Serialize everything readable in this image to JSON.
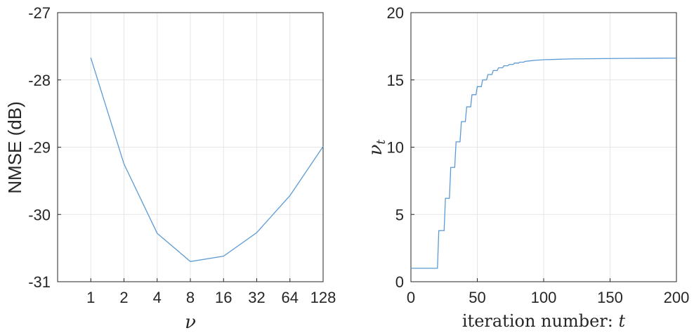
{
  "chart_data": [
    {
      "type": "line",
      "title": "",
      "xlabel": "ν",
      "ylabel": "NMSE (dB)",
      "x_ticks": [
        "1",
        "2",
        "4",
        "8",
        "16",
        "32",
        "64",
        "128"
      ],
      "y_ticks": [
        "-27",
        "-28",
        "-29",
        "-30",
        "-31"
      ],
      "ylim": [
        -31,
        -27
      ],
      "grid": true,
      "series": [
        {
          "x": [
            1,
            2,
            4,
            8,
            16,
            32,
            64,
            128
          ],
          "y": [
            -27.67,
            -29.25,
            -30.28,
            -30.7,
            -30.62,
            -30.27,
            -29.72,
            -28.99
          ]
        }
      ]
    },
    {
      "type": "line",
      "title": "",
      "xlabel": "iteration number: ",
      "xlabel_var": "t",
      "ylabel": "ν",
      "ylabel_sub": "t",
      "xlim": [
        0,
        200
      ],
      "ylim": [
        0,
        20
      ],
      "x_ticks": [
        "0",
        "50",
        "100",
        "150",
        "200"
      ],
      "y_ticks": [
        "0",
        "5",
        "10",
        "15",
        "20"
      ],
      "grid": true,
      "series": [
        {
          "x": [
            0,
            20,
            21,
            25,
            26,
            29,
            30,
            33,
            34,
            37,
            38,
            41,
            42,
            45,
            46,
            49,
            50,
            53,
            54,
            57,
            58,
            61,
            62,
            65,
            66,
            69,
            70,
            73,
            74,
            77,
            78,
            81,
            82,
            85,
            86,
            90,
            95,
            100,
            110,
            120,
            140,
            160,
            180,
            200
          ],
          "y": [
            1,
            1,
            3.8,
            3.8,
            6.2,
            6.2,
            8.5,
            8.5,
            10.4,
            10.4,
            11.9,
            11.9,
            13.0,
            13.0,
            13.9,
            13.9,
            14.5,
            14.5,
            15.0,
            15.0,
            15.4,
            15.4,
            15.7,
            15.7,
            15.9,
            15.9,
            16.05,
            16.05,
            16.15,
            16.15,
            16.25,
            16.25,
            16.32,
            16.32,
            16.38,
            16.42,
            16.47,
            16.5,
            16.53,
            16.56,
            16.58,
            16.6,
            16.61,
            16.62
          ]
        }
      ]
    }
  ]
}
